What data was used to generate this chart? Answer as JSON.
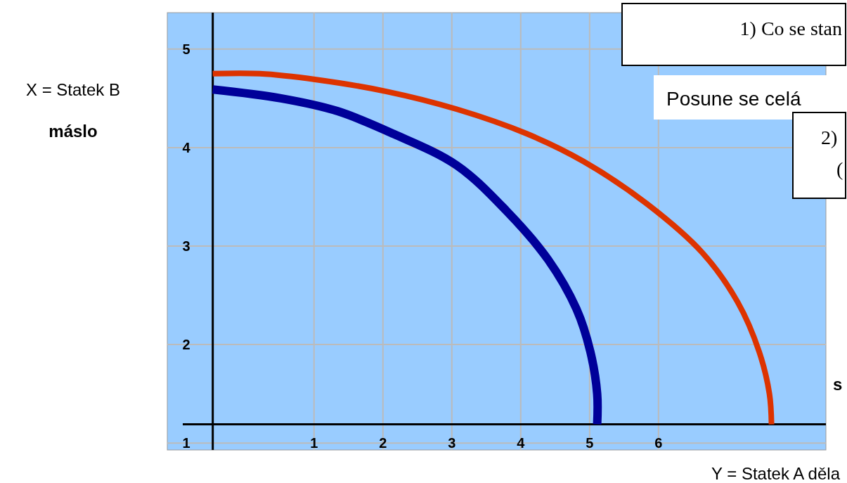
{
  "chart_data": {
    "type": "line",
    "xlabel": "Y = Statek A děla",
    "ylabel": "X = Statek B",
    "xlim": [
      -1.13,
      8.43
    ],
    "ylim": [
      0.93,
      5.37
    ],
    "xticks": [
      1,
      2,
      3,
      4,
      5,
      6
    ],
    "yticks": [
      1,
      2,
      3,
      4,
      5
    ],
    "grid": true,
    "marker": "none",
    "line_style": "solid",
    "ref_lines": [
      {
        "axis": "y",
        "value": 1.19,
        "color": "#000000"
      },
      {
        "axis": "x",
        "value": -0.47,
        "color": "#000000"
      }
    ],
    "series": [
      {
        "color": "#000099",
        "x": [
          -0.47,
          0.52,
          1.34,
          2.15,
          3.07,
          3.79,
          4.4,
          4.81,
          5.01,
          5.11,
          5.11
        ],
        "values": [
          4.59,
          4.5,
          4.37,
          4.14,
          3.82,
          3.36,
          2.86,
          2.36,
          1.93,
          1.5,
          1.19
        ]
      },
      {
        "color": "#dd3300",
        "x": [
          -0.47,
          0.21,
          1.03,
          2.05,
          3.07,
          4.09,
          4.91,
          5.83,
          6.64,
          7.15,
          7.46,
          7.61,
          7.64
        ],
        "values": [
          4.75,
          4.75,
          4.69,
          4.57,
          4.39,
          4.14,
          3.86,
          3.43,
          2.93,
          2.43,
          1.93,
          1.5,
          1.19
        ]
      }
    ],
    "annotations": [
      "máslo",
      "1) Co se stan",
      "Posune se celá",
      "2)",
      "(",
      "s"
    ]
  }
}
